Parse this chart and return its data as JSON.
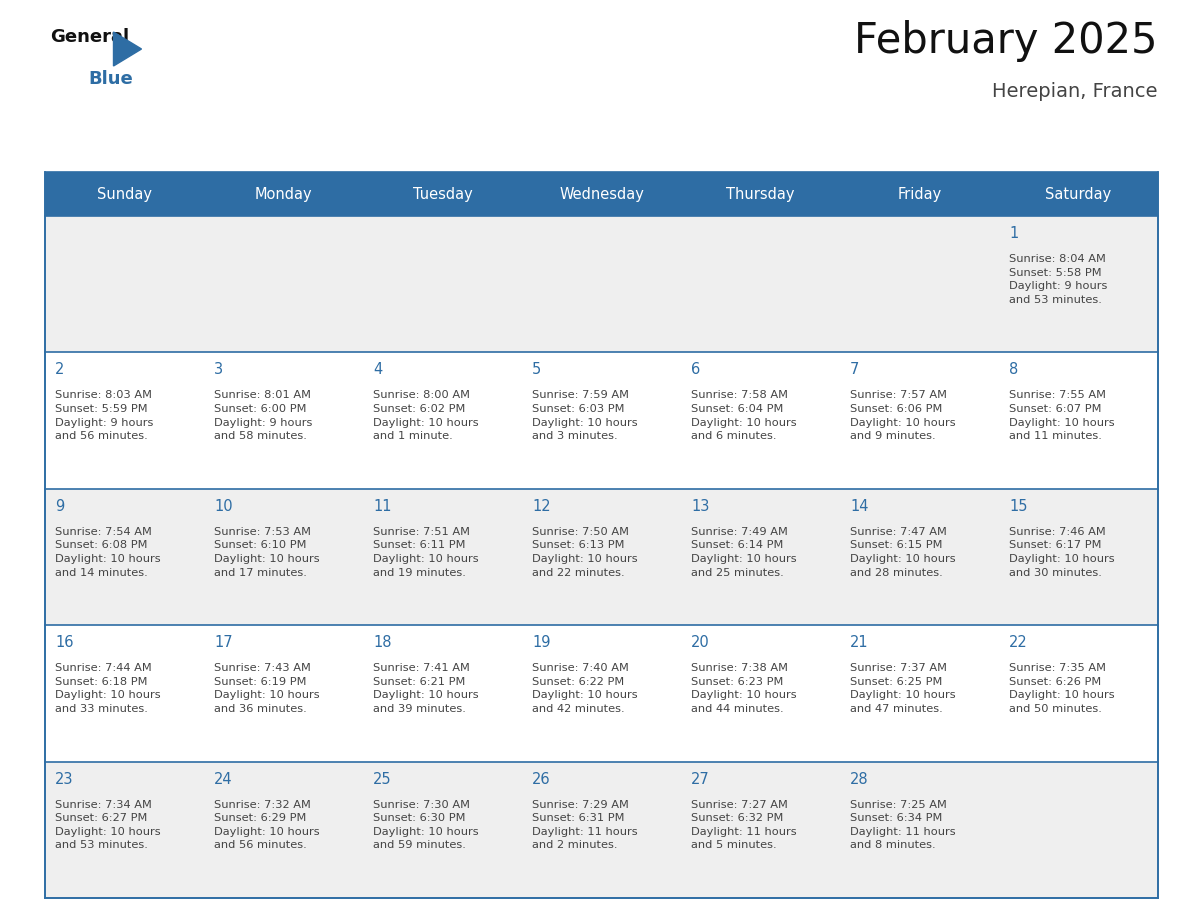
{
  "title": "February 2025",
  "subtitle": "Herepian, France",
  "days_of_week": [
    "Sunday",
    "Monday",
    "Tuesday",
    "Wednesday",
    "Thursday",
    "Friday",
    "Saturday"
  ],
  "header_bg": "#2e6da4",
  "header_text": "#ffffff",
  "row_bg_odd": "#efefef",
  "row_bg_even": "#ffffff",
  "cell_border": "#2e6da4",
  "day_number_color": "#2e6da4",
  "text_color": "#444444",
  "title_color": "#111111",
  "subtitle_color": "#444444",
  "calendar": [
    [
      null,
      null,
      null,
      null,
      null,
      null,
      {
        "day": 1,
        "sunrise": "8:04 AM",
        "sunset": "5:58 PM",
        "daylight": "9 hours\nand 53 minutes."
      }
    ],
    [
      {
        "day": 2,
        "sunrise": "8:03 AM",
        "sunset": "5:59 PM",
        "daylight": "9 hours\nand 56 minutes."
      },
      {
        "day": 3,
        "sunrise": "8:01 AM",
        "sunset": "6:00 PM",
        "daylight": "9 hours\nand 58 minutes."
      },
      {
        "day": 4,
        "sunrise": "8:00 AM",
        "sunset": "6:02 PM",
        "daylight": "10 hours\nand 1 minute."
      },
      {
        "day": 5,
        "sunrise": "7:59 AM",
        "sunset": "6:03 PM",
        "daylight": "10 hours\nand 3 minutes."
      },
      {
        "day": 6,
        "sunrise": "7:58 AM",
        "sunset": "6:04 PM",
        "daylight": "10 hours\nand 6 minutes."
      },
      {
        "day": 7,
        "sunrise": "7:57 AM",
        "sunset": "6:06 PM",
        "daylight": "10 hours\nand 9 minutes."
      },
      {
        "day": 8,
        "sunrise": "7:55 AM",
        "sunset": "6:07 PM",
        "daylight": "10 hours\nand 11 minutes."
      }
    ],
    [
      {
        "day": 9,
        "sunrise": "7:54 AM",
        "sunset": "6:08 PM",
        "daylight": "10 hours\nand 14 minutes."
      },
      {
        "day": 10,
        "sunrise": "7:53 AM",
        "sunset": "6:10 PM",
        "daylight": "10 hours\nand 17 minutes."
      },
      {
        "day": 11,
        "sunrise": "7:51 AM",
        "sunset": "6:11 PM",
        "daylight": "10 hours\nand 19 minutes."
      },
      {
        "day": 12,
        "sunrise": "7:50 AM",
        "sunset": "6:13 PM",
        "daylight": "10 hours\nand 22 minutes."
      },
      {
        "day": 13,
        "sunrise": "7:49 AM",
        "sunset": "6:14 PM",
        "daylight": "10 hours\nand 25 minutes."
      },
      {
        "day": 14,
        "sunrise": "7:47 AM",
        "sunset": "6:15 PM",
        "daylight": "10 hours\nand 28 minutes."
      },
      {
        "day": 15,
        "sunrise": "7:46 AM",
        "sunset": "6:17 PM",
        "daylight": "10 hours\nand 30 minutes."
      }
    ],
    [
      {
        "day": 16,
        "sunrise": "7:44 AM",
        "sunset": "6:18 PM",
        "daylight": "10 hours\nand 33 minutes."
      },
      {
        "day": 17,
        "sunrise": "7:43 AM",
        "sunset": "6:19 PM",
        "daylight": "10 hours\nand 36 minutes."
      },
      {
        "day": 18,
        "sunrise": "7:41 AM",
        "sunset": "6:21 PM",
        "daylight": "10 hours\nand 39 minutes."
      },
      {
        "day": 19,
        "sunrise": "7:40 AM",
        "sunset": "6:22 PM",
        "daylight": "10 hours\nand 42 minutes."
      },
      {
        "day": 20,
        "sunrise": "7:38 AM",
        "sunset": "6:23 PM",
        "daylight": "10 hours\nand 44 minutes."
      },
      {
        "day": 21,
        "sunrise": "7:37 AM",
        "sunset": "6:25 PM",
        "daylight": "10 hours\nand 47 minutes."
      },
      {
        "day": 22,
        "sunrise": "7:35 AM",
        "sunset": "6:26 PM",
        "daylight": "10 hours\nand 50 minutes."
      }
    ],
    [
      {
        "day": 23,
        "sunrise": "7:34 AM",
        "sunset": "6:27 PM",
        "daylight": "10 hours\nand 53 minutes."
      },
      {
        "day": 24,
        "sunrise": "7:32 AM",
        "sunset": "6:29 PM",
        "daylight": "10 hours\nand 56 minutes."
      },
      {
        "day": 25,
        "sunrise": "7:30 AM",
        "sunset": "6:30 PM",
        "daylight": "10 hours\nand 59 minutes."
      },
      {
        "day": 26,
        "sunrise": "7:29 AM",
        "sunset": "6:31 PM",
        "daylight": "11 hours\nand 2 minutes."
      },
      {
        "day": 27,
        "sunrise": "7:27 AM",
        "sunset": "6:32 PM",
        "daylight": "11 hours\nand 5 minutes."
      },
      {
        "day": 28,
        "sunrise": "7:25 AM",
        "sunset": "6:34 PM",
        "daylight": "11 hours\nand 8 minutes."
      },
      null
    ]
  ],
  "num_rows": 5,
  "num_cols": 7,
  "fig_width": 11.88,
  "fig_height": 9.18,
  "dpi": 100
}
